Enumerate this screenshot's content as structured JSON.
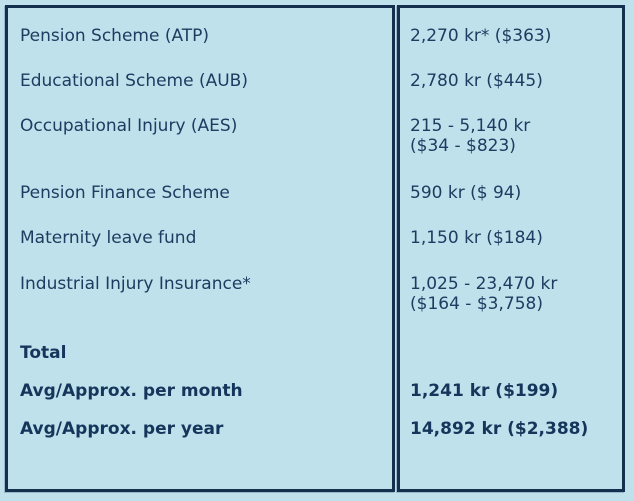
{
  "table": {
    "rows": [
      {
        "label": "Pension Scheme (ATP)",
        "value": "2,270 kr* ($363)",
        "value2": "",
        "bold": false
      },
      {
        "label": "Educational Scheme (AUB)",
        "value": "2,780 kr ($445)",
        "value2": "",
        "bold": false
      },
      {
        "label": "Occupational Injury (AES)",
        "value": "215 - 5,140 kr",
        "value2": "($34 - $823)",
        "bold": false
      },
      {
        "label": "Pension Finance Scheme",
        "value": "590 kr ($ 94)",
        "value2": "",
        "bold": false
      },
      {
        "label": "Maternity leave fund",
        "value": "1,150 kr ($184)",
        "value2": "",
        "bold": false
      },
      {
        "label": "Industrial Injury Insurance*",
        "value": "1,025 - 23,470 kr",
        "value2": "($164 - $3,758)",
        "bold": false
      },
      {
        "label": "Total",
        "value": "",
        "value2": "",
        "bold": true
      },
      {
        "label": "Avg/Approx. per month",
        "value": "1,241 kr ($199)",
        "value2": "",
        "bold": true
      },
      {
        "label": "Avg/Approx. per year",
        "value": "14,892 kr ($2,388)",
        "value2": "",
        "bold": true
      }
    ]
  },
  "colors": {
    "background": "#bee1ec",
    "border": "#13304e",
    "text": "#1d3c60",
    "text_bold": "#16355b"
  }
}
